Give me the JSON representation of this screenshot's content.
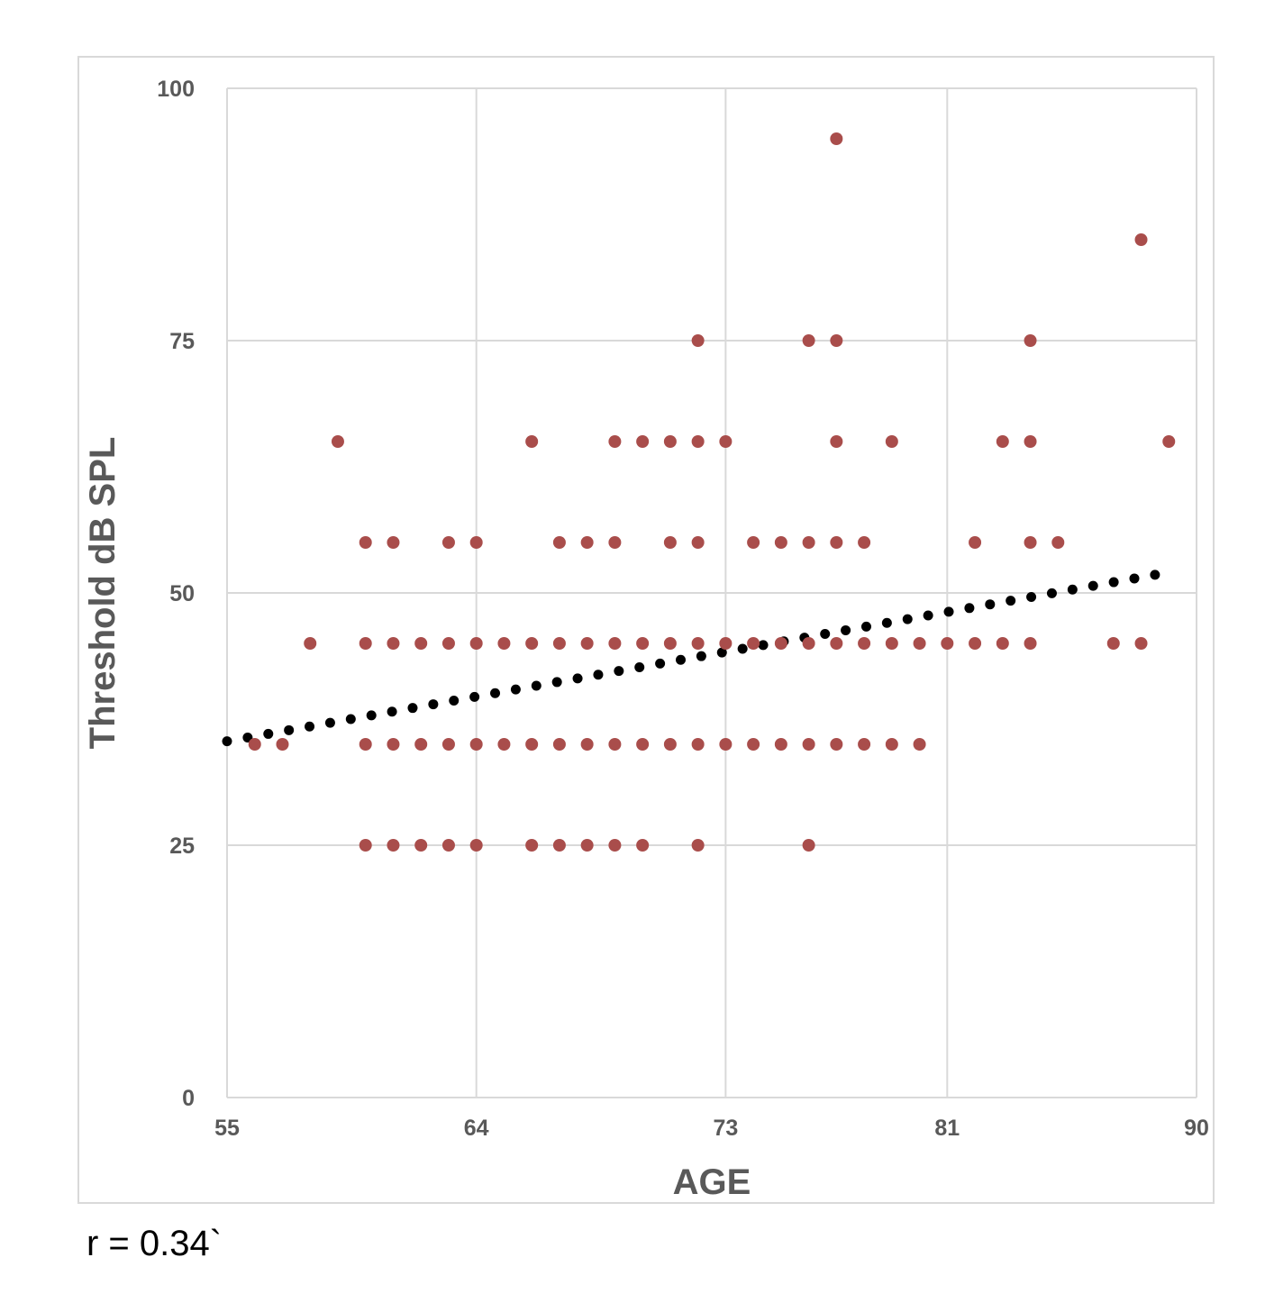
{
  "chart_data": {
    "type": "scatter",
    "title": "",
    "xlabel": "AGE",
    "ylabel": "Threshold dB SPL",
    "xlim": [
      55,
      90
    ],
    "ylim": [
      0,
      100
    ],
    "x_ticks": [
      "55",
      "64",
      "73",
      "81",
      "90"
    ],
    "y_ticks": [
      "0",
      "25",
      "50",
      "75",
      "100"
    ],
    "grid": true,
    "marker_color": "#a94d4b",
    "trendline": {
      "style": "dotted",
      "color": "#000000",
      "from": [
        55,
        35.3
      ],
      "to": [
        88.5,
        51.8
      ]
    },
    "series": [
      {
        "points": [
          [
            56,
            35
          ],
          [
            57,
            35
          ],
          [
            58,
            45
          ],
          [
            59,
            65
          ],
          [
            60,
            55
          ],
          [
            60,
            45
          ],
          [
            60,
            35
          ],
          [
            60,
            25
          ],
          [
            61,
            55
          ],
          [
            61,
            45
          ],
          [
            61,
            35
          ],
          [
            61,
            25
          ],
          [
            62,
            45
          ],
          [
            62,
            35
          ],
          [
            62,
            25
          ],
          [
            63,
            55
          ],
          [
            63,
            45
          ],
          [
            63,
            35
          ],
          [
            63,
            25
          ],
          [
            64,
            55
          ],
          [
            64,
            45
          ],
          [
            64,
            35
          ],
          [
            64,
            25
          ],
          [
            65,
            45
          ],
          [
            65,
            35
          ],
          [
            66,
            65
          ],
          [
            66,
            45
          ],
          [
            66,
            35
          ],
          [
            66,
            25
          ],
          [
            67,
            55
          ],
          [
            67,
            45
          ],
          [
            67,
            35
          ],
          [
            67,
            25
          ],
          [
            68,
            55
          ],
          [
            68,
            45
          ],
          [
            68,
            35
          ],
          [
            68,
            25
          ],
          [
            69,
            65
          ],
          [
            69,
            55
          ],
          [
            69,
            45
          ],
          [
            69,
            35
          ],
          [
            69,
            25
          ],
          [
            70,
            65
          ],
          [
            70,
            45
          ],
          [
            70,
            35
          ],
          [
            70,
            25
          ],
          [
            71,
            65
          ],
          [
            71,
            55
          ],
          [
            71,
            45
          ],
          [
            71,
            35
          ],
          [
            72,
            75
          ],
          [
            72,
            65
          ],
          [
            72,
            55
          ],
          [
            72,
            45
          ],
          [
            72,
            35
          ],
          [
            72,
            25
          ],
          [
            73,
            65
          ],
          [
            73,
            45
          ],
          [
            73,
            35
          ],
          [
            74,
            55
          ],
          [
            74,
            45
          ],
          [
            74,
            35
          ],
          [
            75,
            55
          ],
          [
            75,
            45
          ],
          [
            75,
            35
          ],
          [
            76,
            75
          ],
          [
            76,
            55
          ],
          [
            76,
            45
          ],
          [
            76,
            35
          ],
          [
            76,
            25
          ],
          [
            77,
            95
          ],
          [
            77,
            75
          ],
          [
            77,
            65
          ],
          [
            77,
            55
          ],
          [
            77,
            45
          ],
          [
            77,
            35
          ],
          [
            78,
            55
          ],
          [
            78,
            45
          ],
          [
            78,
            35
          ],
          [
            79,
            65
          ],
          [
            79,
            45
          ],
          [
            79,
            35
          ],
          [
            80,
            45
          ],
          [
            80,
            35
          ],
          [
            81,
            45
          ],
          [
            82,
            55
          ],
          [
            82,
            45
          ],
          [
            83,
            65
          ],
          [
            83,
            45
          ],
          [
            84,
            75
          ],
          [
            84,
            65
          ],
          [
            84,
            55
          ],
          [
            84,
            45
          ],
          [
            85,
            55
          ],
          [
            87,
            45
          ],
          [
            88,
            85
          ],
          [
            88,
            45
          ],
          [
            89,
            65
          ]
        ]
      }
    ]
  },
  "footnote": "r = 0.34`"
}
